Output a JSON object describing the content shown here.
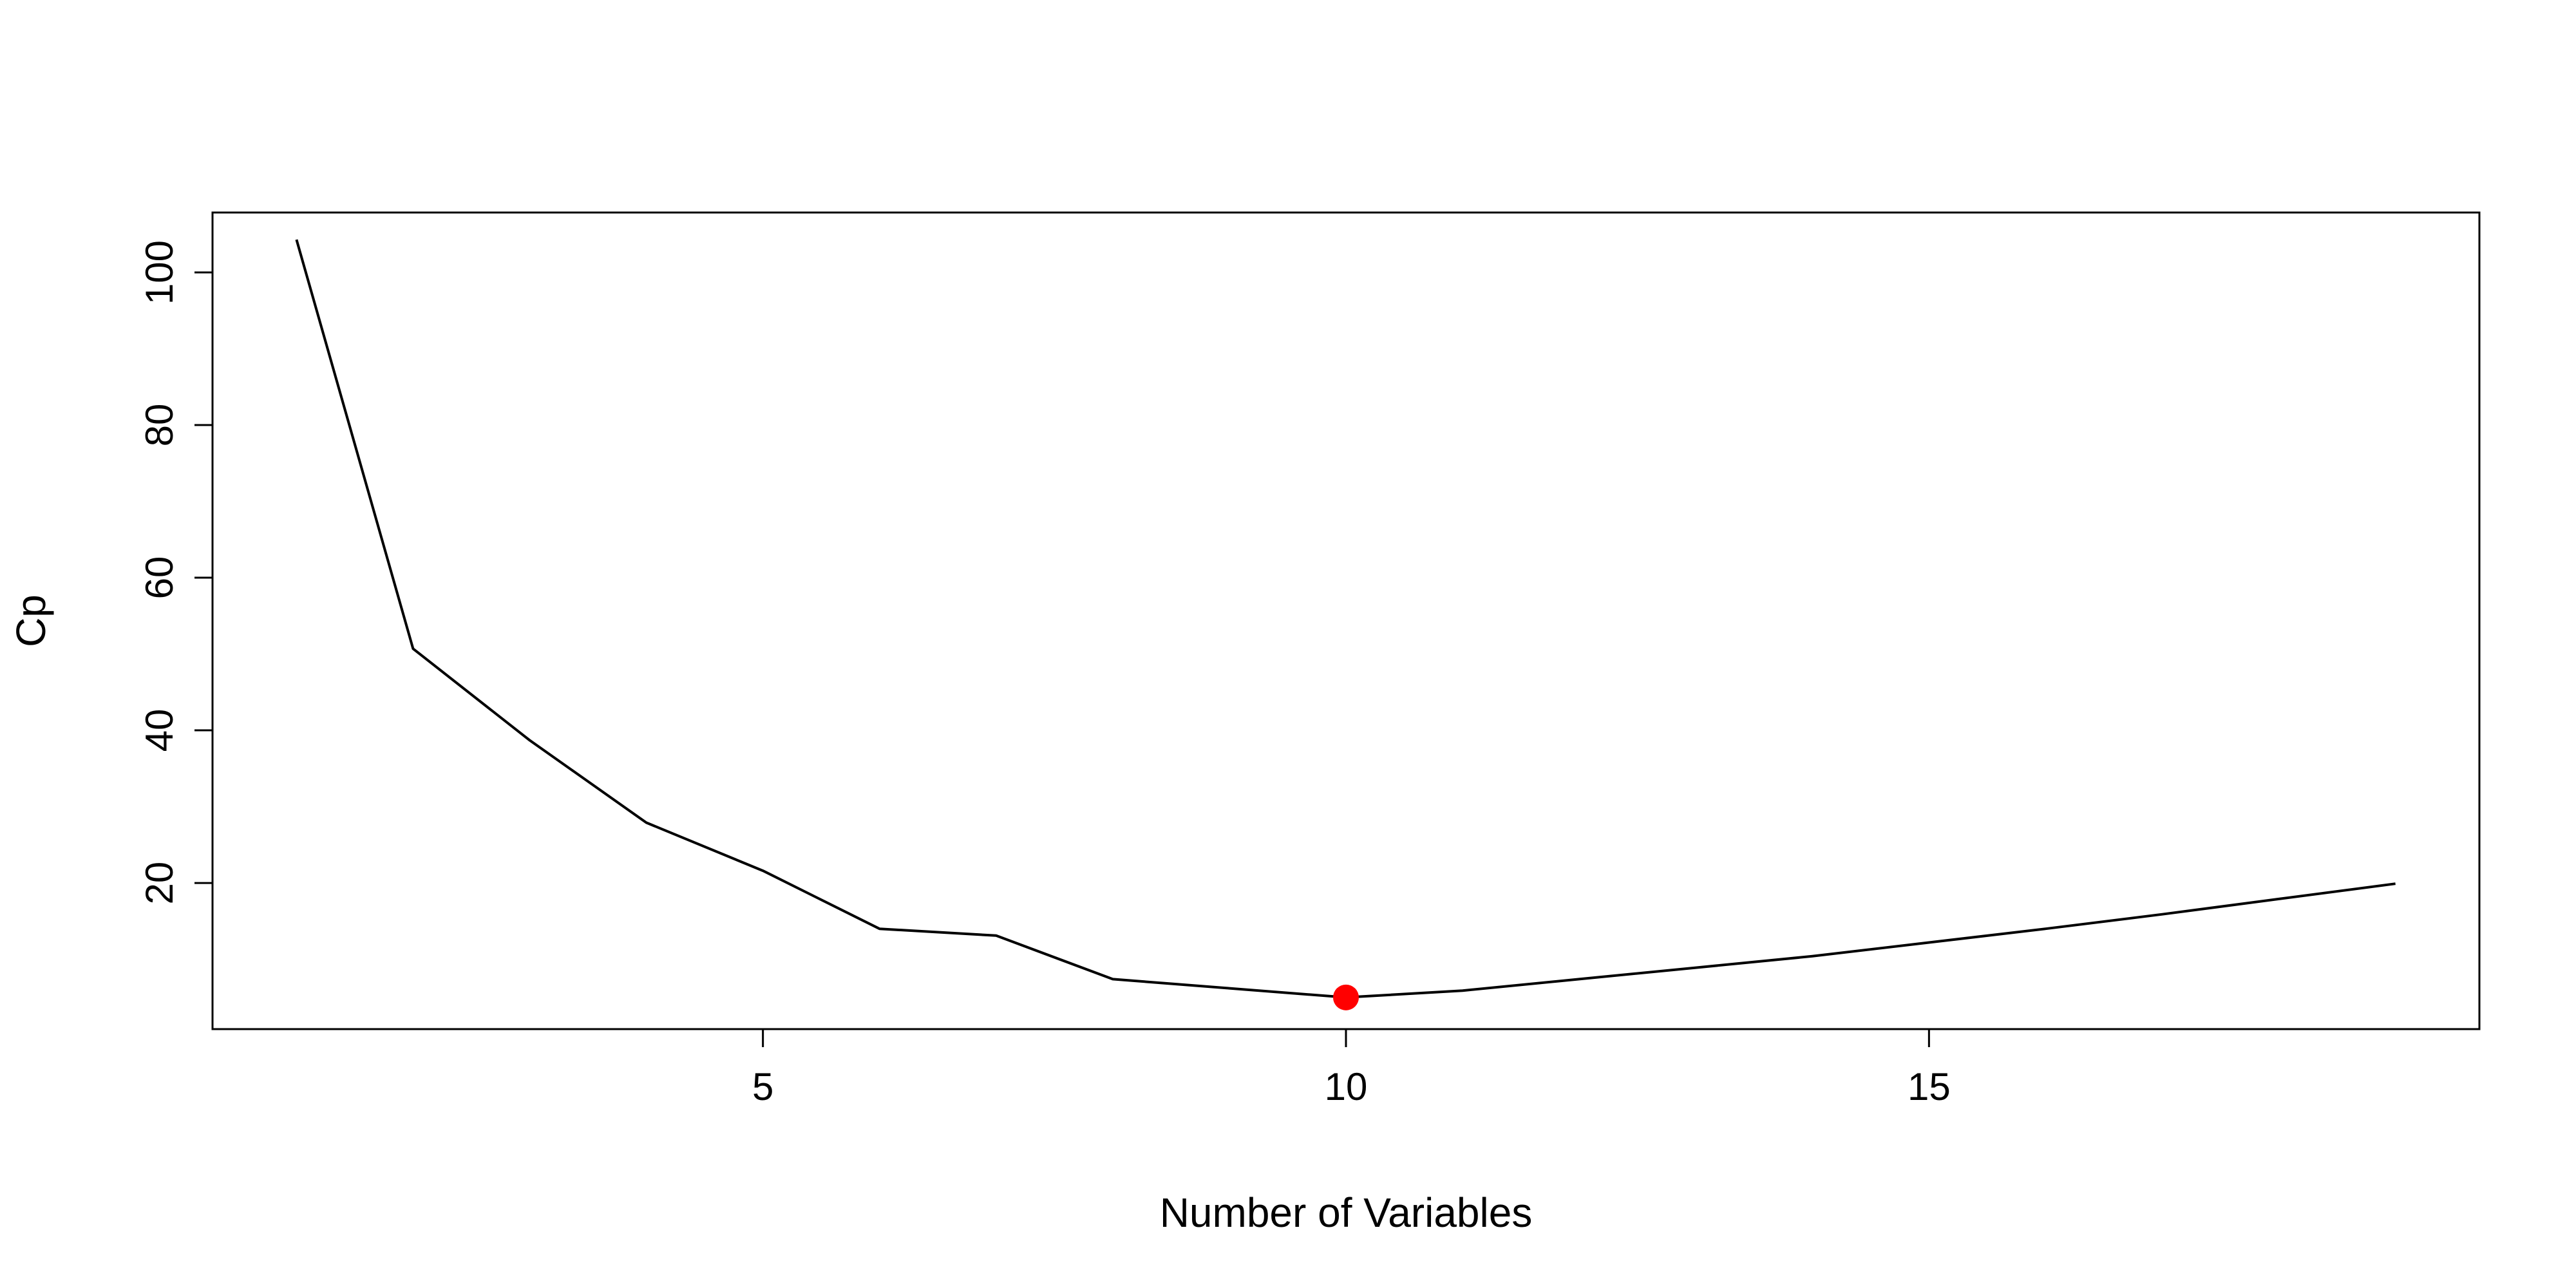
{
  "chart_data": {
    "type": "line",
    "title": "",
    "xlabel": "Number of Variables",
    "ylabel": "Cp",
    "x": [
      1,
      2,
      3,
      4,
      5,
      6,
      7,
      8,
      9,
      10,
      11,
      12,
      13,
      14,
      15,
      16,
      17,
      18,
      19
    ],
    "series": [
      {
        "values": [
          104.3,
          50.7,
          38.7,
          27.9,
          21.6,
          14.0,
          13.1,
          7.4,
          6.2,
          5.0,
          5.9,
          7.4,
          8.9,
          10.4,
          12.2,
          14.0,
          15.9,
          17.9,
          19.9
        ],
        "color": "#000000"
      }
    ],
    "highlight": {
      "x": 10,
      "y": 5.0,
      "color": "#ff0000"
    },
    "xlim": [
      0.28,
      19.72
    ],
    "ylim": [
      0.85,
      107.85
    ],
    "xticks": [
      5,
      10,
      15
    ],
    "yticks": [
      20,
      40,
      60,
      80,
      100
    ],
    "grid": false,
    "legend": "none"
  }
}
